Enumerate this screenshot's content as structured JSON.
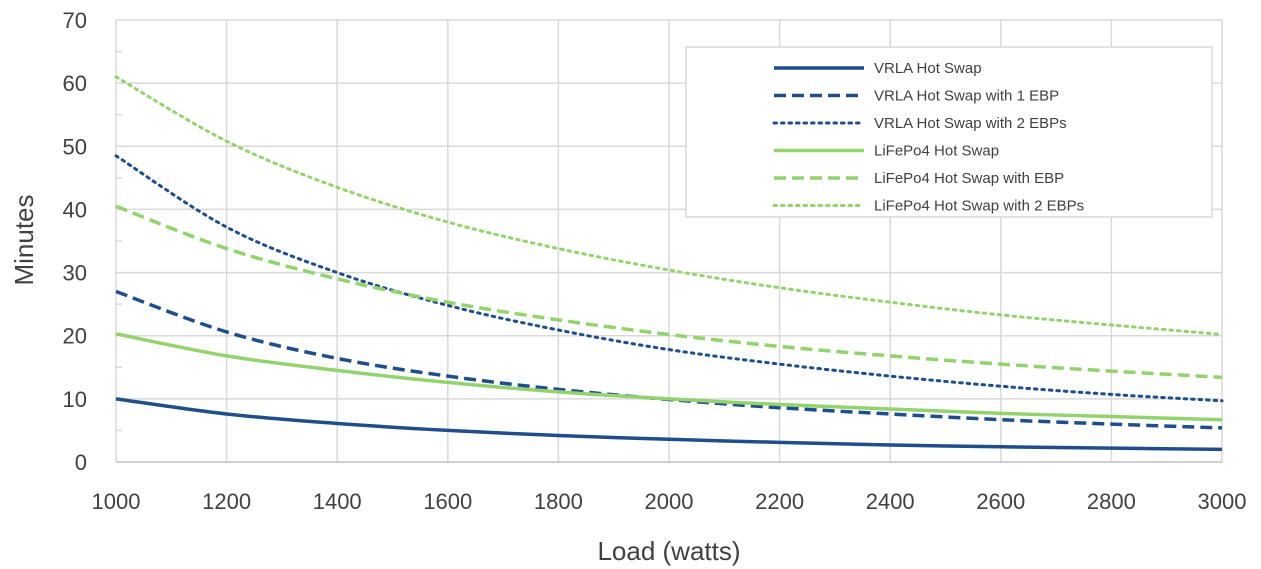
{
  "chart_data": {
    "type": "line",
    "title": "",
    "xlabel": "Load (watts)",
    "ylabel": "Minutes",
    "xlim": [
      1000,
      3000
    ],
    "ylim": [
      0,
      70
    ],
    "x_ticks": [
      1000,
      1200,
      1400,
      1600,
      1800,
      2000,
      2200,
      2400,
      2600,
      2800,
      3000
    ],
    "y_ticks": [
      0,
      10,
      20,
      30,
      40,
      50,
      60,
      70
    ],
    "grid": true,
    "legend_position": "top-right",
    "x": [
      1000,
      1200,
      1400,
      1600,
      1800,
      2000,
      2200,
      2400,
      2600,
      2800,
      3000
    ],
    "series": [
      {
        "name": "VRLA Hot Swap",
        "color": "#1f4e8c",
        "dash": "solid",
        "values": [
          10.0,
          7.6,
          6.1,
          5.0,
          4.2,
          3.6,
          3.1,
          2.7,
          2.4,
          2.2,
          2.0
        ]
      },
      {
        "name": "VRLA Hot Swap with 1 EBP",
        "color": "#1f4e8c",
        "dash": "dash",
        "values": [
          27.0,
          20.6,
          16.4,
          13.6,
          11.5,
          9.9,
          8.6,
          7.6,
          6.7,
          6.0,
          5.4
        ]
      },
      {
        "name": "VRLA Hot Swap with 2 EBPs",
        "color": "#1f4e8c",
        "dash": "dot",
        "values": [
          48.5,
          37.2,
          30.0,
          24.8,
          20.9,
          17.8,
          15.5,
          13.6,
          12.0,
          10.7,
          9.7
        ]
      },
      {
        "name": "LiFePo4 Hot Swap",
        "color": "#92d36e",
        "dash": "solid",
        "values": [
          20.3,
          16.8,
          14.5,
          12.6,
          11.1,
          10.0,
          9.1,
          8.4,
          7.7,
          7.2,
          6.7
        ]
      },
      {
        "name": "LiFePo4 Hot Swap with EBP",
        "color": "#92d36e",
        "dash": "dash",
        "values": [
          40.5,
          33.8,
          29.0,
          25.3,
          22.5,
          20.2,
          18.3,
          16.8,
          15.5,
          14.4,
          13.4
        ]
      },
      {
        "name": "LiFePo4 Hot Swap with 2 EBPs",
        "color": "#92d36e",
        "dash": "dot",
        "values": [
          61.0,
          50.8,
          43.5,
          38.0,
          33.8,
          30.4,
          27.6,
          25.3,
          23.3,
          21.7,
          20.2
        ]
      }
    ]
  }
}
